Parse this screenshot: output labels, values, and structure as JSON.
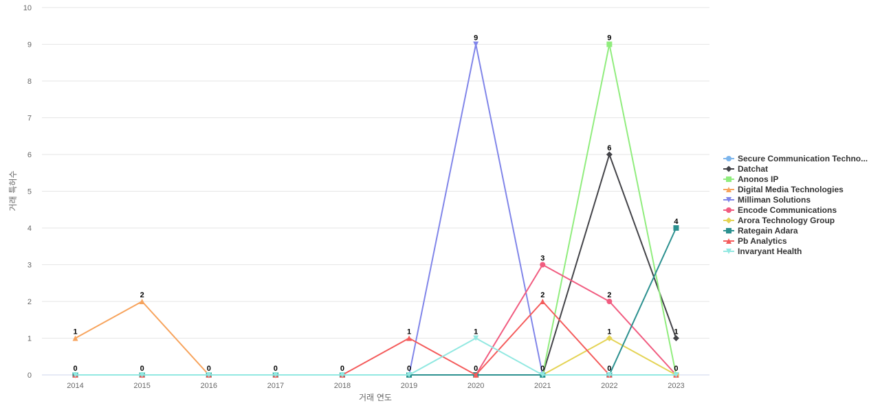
{
  "chart_data": {
    "type": "line",
    "title": "",
    "xlabel": "거래 연도",
    "ylabel": "거래 특허수",
    "categories": [
      "2014",
      "2015",
      "2016",
      "2017",
      "2018",
      "2019",
      "2020",
      "2021",
      "2022",
      "2023"
    ],
    "ylim": [
      0,
      10
    ],
    "yticks": [
      0,
      1,
      2,
      3,
      4,
      5,
      6,
      7,
      8,
      9,
      10
    ],
    "grid": true,
    "legend_position": "right",
    "series": [
      {
        "name": "Secure Communication Techno...",
        "color": "#7cb5ec",
        "marker": "circle",
        "values": [
          0,
          0,
          0,
          0,
          0,
          0,
          0,
          0,
          0,
          0
        ]
      },
      {
        "name": "Datchat",
        "color": "#434348",
        "marker": "diamond",
        "values": [
          0,
          0,
          0,
          0,
          0,
          0,
          0,
          0,
          6,
          1
        ]
      },
      {
        "name": "Anonos IP",
        "color": "#90ed7d",
        "marker": "square",
        "values": [
          0,
          0,
          0,
          0,
          0,
          0,
          0,
          0,
          9,
          0
        ]
      },
      {
        "name": "Digital Media Technologies",
        "color": "#f7a35c",
        "marker": "triangle",
        "values": [
          1,
          2,
          0,
          0,
          0,
          0,
          0,
          0,
          0,
          0
        ]
      },
      {
        "name": "Milliman Solutions",
        "color": "#8085e9",
        "marker": "triangle-down",
        "values": [
          0,
          0,
          0,
          0,
          0,
          0,
          9,
          0,
          0,
          0
        ]
      },
      {
        "name": "Encode Communications",
        "color": "#f15c80",
        "marker": "circle",
        "values": [
          0,
          0,
          0,
          0,
          0,
          0,
          0,
          3,
          2,
          0
        ]
      },
      {
        "name": "Arora Technology Group",
        "color": "#e4d354",
        "marker": "diamond",
        "values": [
          0,
          0,
          0,
          0,
          0,
          0,
          0,
          0,
          1,
          0
        ]
      },
      {
        "name": "Rategain Adara",
        "color": "#2b908f",
        "marker": "square",
        "values": [
          0,
          0,
          0,
          0,
          0,
          0,
          0,
          0,
          0,
          4
        ]
      },
      {
        "name": "Pb Analytics",
        "color": "#f45b5b",
        "marker": "triangle",
        "values": [
          0,
          0,
          0,
          0,
          0,
          1,
          0,
          2,
          0,
          0
        ]
      },
      {
        "name": "Invaryant Health",
        "color": "#91e8e1",
        "marker": "triangle-down",
        "values": [
          0,
          0,
          0,
          0,
          0,
          0,
          1,
          0,
          0,
          0
        ]
      }
    ],
    "data_labels": [
      {
        "category": "2014",
        "value": 1
      },
      {
        "category": "2014",
        "value": 0
      },
      {
        "category": "2015",
        "value": 2
      },
      {
        "category": "2015",
        "value": 0
      },
      {
        "category": "2016",
        "value": 0
      },
      {
        "category": "2017",
        "value": 0
      },
      {
        "category": "2018",
        "value": 0
      },
      {
        "category": "2019",
        "value": 1
      },
      {
        "category": "2019",
        "value": 0
      },
      {
        "category": "2020",
        "value": 9
      },
      {
        "category": "2020",
        "value": 1
      },
      {
        "category": "2020",
        "value": 0
      },
      {
        "category": "2021",
        "value": 3
      },
      {
        "category": "2021",
        "value": 2
      },
      {
        "category": "2021",
        "value": 0
      },
      {
        "category": "2022",
        "value": 9
      },
      {
        "category": "2022",
        "value": 6
      },
      {
        "category": "2022",
        "value": 2
      },
      {
        "category": "2022",
        "value": 1
      },
      {
        "category": "2022",
        "value": 0
      },
      {
        "category": "2023",
        "value": 4
      },
      {
        "category": "2023",
        "value": 1
      },
      {
        "category": "2023",
        "value": 0
      }
    ]
  }
}
